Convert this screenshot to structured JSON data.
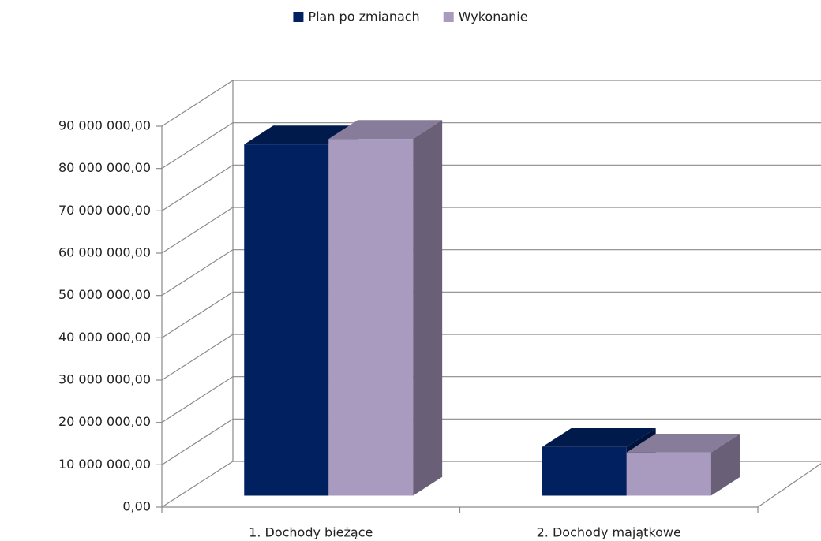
{
  "chart_data": {
    "type": "bar3d",
    "categories": [
      "1. Dochody bieżące",
      "2. Dochody majątkowe"
    ],
    "series": [
      {
        "name": "Plan po zmianach",
        "color": "#00205f",
        "values": [
          83000000,
          11500000
        ]
      },
      {
        "name": "Wykonanie",
        "color": "#a99bc0",
        "values": [
          84300000,
          10200000
        ]
      }
    ],
    "ylim": [
      0,
      90000000
    ],
    "yticks": [
      {
        "value": 0,
        "label": "0,00"
      },
      {
        "value": 10000000,
        "label": "10 000 000,00"
      },
      {
        "value": 20000000,
        "label": "20 000 000,00"
      },
      {
        "value": 30000000,
        "label": "30 000 000,00"
      },
      {
        "value": 40000000,
        "label": "40 000 000,00"
      },
      {
        "value": 50000000,
        "label": "50 000 000,00"
      },
      {
        "value": 60000000,
        "label": "60 000 000,00"
      },
      {
        "value": 70000000,
        "label": "70 000 000,00"
      },
      {
        "value": 80000000,
        "label": "80 000 000,00"
      },
      {
        "value": 90000000,
        "label": "90 000 000,00"
      }
    ],
    "grid": true,
    "legend": "top"
  }
}
